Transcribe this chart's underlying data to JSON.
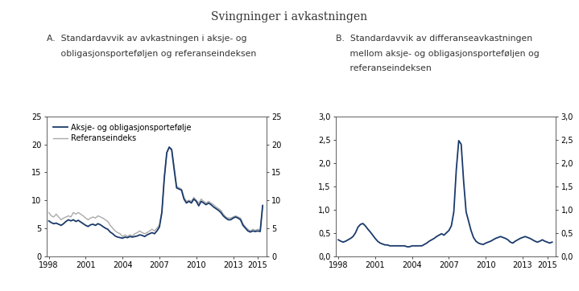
{
  "title": "Svingninger i avkastningen",
  "panel_A_title_line1": "A.  Standardavvik av avkastningen i aksje- og",
  "panel_A_title_line2": "     obligasjonsporteføljen og referanseindeksen",
  "panel_B_title_line1": "B.  Standardavvik av differanseavkastningen",
  "panel_B_title_line2": "     mellom aksje- og obligasjonsporteføljen og",
  "panel_B_title_line3": "     referanseindeksen",
  "legend_portfolio": "Aksje- og obligasjonsportefølje",
  "legend_index": "Referanseindeks",
  "portfolio_color": "#1a3a6b",
  "index_color": "#aaaaaa",
  "panel_A_ylim": [
    0,
    25
  ],
  "panel_A_yticks": [
    0,
    5,
    10,
    15,
    20,
    25
  ],
  "panel_B_ylim": [
    0.0,
    3.0
  ],
  "panel_B_yticks": [
    0.0,
    0.5,
    1.0,
    1.5,
    2.0,
    2.5,
    3.0
  ],
  "xlim_start": 1997.8,
  "xlim_end": 2015.7,
  "xtick_years": [
    1998,
    2001,
    2004,
    2007,
    2010,
    2013,
    2015
  ],
  "background_color": "#ffffff",
  "panel_A_portfolio_x": [
    1998.0,
    1998.2,
    1998.4,
    1998.6,
    1998.8,
    1999.0,
    1999.2,
    1999.4,
    1999.6,
    1999.8,
    2000.0,
    2000.2,
    2000.4,
    2000.6,
    2000.8,
    2001.0,
    2001.2,
    2001.4,
    2001.6,
    2001.8,
    2002.0,
    2002.2,
    2002.4,
    2002.6,
    2002.8,
    2003.0,
    2003.2,
    2003.4,
    2003.6,
    2003.8,
    2004.0,
    2004.2,
    2004.4,
    2004.6,
    2004.8,
    2005.0,
    2005.2,
    2005.4,
    2005.6,
    2005.8,
    2006.0,
    2006.2,
    2006.4,
    2006.6,
    2006.8,
    2007.0,
    2007.2,
    2007.4,
    2007.6,
    2007.8,
    2008.0,
    2008.2,
    2008.4,
    2008.6,
    2008.8,
    2009.0,
    2009.2,
    2009.4,
    2009.6,
    2009.8,
    2010.0,
    2010.2,
    2010.4,
    2010.6,
    2010.8,
    2011.0,
    2011.2,
    2011.4,
    2011.6,
    2011.8,
    2012.0,
    2012.2,
    2012.4,
    2012.6,
    2012.8,
    2013.0,
    2013.2,
    2013.4,
    2013.6,
    2013.8,
    2014.0,
    2014.2,
    2014.4,
    2014.6,
    2014.8,
    2015.0,
    2015.2,
    2015.4
  ],
  "panel_A_portfolio_y": [
    6.3,
    6.0,
    5.8,
    5.9,
    5.7,
    5.5,
    5.8,
    6.2,
    6.5,
    6.3,
    6.5,
    6.2,
    6.4,
    6.1,
    5.8,
    5.5,
    5.3,
    5.6,
    5.7,
    5.5,
    5.8,
    5.6,
    5.3,
    5.0,
    4.8,
    4.3,
    4.0,
    3.6,
    3.4,
    3.3,
    3.2,
    3.4,
    3.3,
    3.5,
    3.4,
    3.5,
    3.6,
    3.8,
    3.7,
    3.5,
    3.8,
    4.0,
    4.2,
    4.0,
    4.5,
    5.2,
    7.8,
    14.0,
    18.5,
    19.5,
    19.0,
    15.5,
    12.2,
    12.0,
    11.8,
    10.2,
    9.5,
    9.8,
    9.5,
    10.2,
    9.8,
    9.0,
    9.8,
    9.5,
    9.2,
    9.5,
    9.2,
    8.8,
    8.5,
    8.2,
    7.8,
    7.2,
    6.8,
    6.5,
    6.5,
    6.8,
    7.0,
    6.8,
    6.5,
    5.5,
    5.0,
    4.5,
    4.3,
    4.5,
    4.4,
    4.5,
    4.4,
    9.0
  ],
  "panel_A_index_x": [
    1998.0,
    1998.2,
    1998.4,
    1998.6,
    1998.8,
    1999.0,
    1999.2,
    1999.4,
    1999.6,
    1999.8,
    2000.0,
    2000.2,
    2000.4,
    2000.6,
    2000.8,
    2001.0,
    2001.2,
    2001.4,
    2001.6,
    2001.8,
    2002.0,
    2002.2,
    2002.4,
    2002.6,
    2002.8,
    2003.0,
    2003.2,
    2003.4,
    2003.6,
    2003.8,
    2004.0,
    2004.2,
    2004.4,
    2004.6,
    2004.8,
    2005.0,
    2005.2,
    2005.4,
    2005.6,
    2005.8,
    2006.0,
    2006.2,
    2006.4,
    2006.6,
    2006.8,
    2007.0,
    2007.2,
    2007.4,
    2007.6,
    2007.8,
    2008.0,
    2008.2,
    2008.4,
    2008.6,
    2008.8,
    2009.0,
    2009.2,
    2009.4,
    2009.6,
    2009.8,
    2010.0,
    2010.2,
    2010.4,
    2010.6,
    2010.8,
    2011.0,
    2011.2,
    2011.4,
    2011.6,
    2011.8,
    2012.0,
    2012.2,
    2012.4,
    2012.6,
    2012.8,
    2013.0,
    2013.2,
    2013.4,
    2013.6,
    2013.8,
    2014.0,
    2014.2,
    2014.4,
    2014.6,
    2014.8,
    2015.0,
    2015.2,
    2015.4
  ],
  "panel_A_index_y": [
    7.8,
    7.2,
    7.0,
    7.5,
    7.0,
    6.5,
    6.8,
    7.0,
    7.2,
    7.0,
    7.8,
    7.5,
    7.8,
    7.5,
    7.2,
    6.8,
    6.5,
    6.8,
    7.0,
    6.8,
    7.2,
    7.0,
    6.8,
    6.5,
    6.2,
    5.5,
    5.0,
    4.5,
    4.2,
    4.0,
    3.5,
    3.8,
    3.5,
    3.8,
    3.6,
    4.0,
    4.2,
    4.5,
    4.2,
    4.0,
    4.2,
    4.5,
    4.8,
    4.5,
    5.0,
    5.5,
    8.0,
    14.2,
    18.5,
    19.5,
    19.2,
    16.0,
    12.5,
    12.2,
    12.0,
    10.5,
    9.8,
    10.0,
    9.8,
    10.5,
    10.0,
    9.5,
    10.2,
    9.8,
    9.5,
    9.8,
    9.5,
    9.2,
    8.8,
    8.5,
    8.2,
    7.5,
    7.0,
    6.8,
    6.8,
    7.0,
    7.2,
    7.0,
    6.8,
    5.8,
    5.2,
    4.8,
    4.5,
    4.8,
    4.6,
    4.8,
    4.6,
    9.2
  ],
  "panel_B_x": [
    1998.0,
    1998.2,
    1998.4,
    1998.6,
    1998.8,
    1999.0,
    1999.2,
    1999.4,
    1999.6,
    1999.8,
    2000.0,
    2000.2,
    2000.4,
    2000.6,
    2000.8,
    2001.0,
    2001.2,
    2001.4,
    2001.6,
    2001.8,
    2002.0,
    2002.2,
    2002.4,
    2002.6,
    2002.8,
    2003.0,
    2003.2,
    2003.4,
    2003.6,
    2003.8,
    2004.0,
    2004.2,
    2004.4,
    2004.6,
    2004.8,
    2005.0,
    2005.2,
    2005.4,
    2005.6,
    2005.8,
    2006.0,
    2006.2,
    2006.4,
    2006.6,
    2006.8,
    2007.0,
    2007.2,
    2007.4,
    2007.6,
    2007.8,
    2008.0,
    2008.2,
    2008.4,
    2008.6,
    2008.8,
    2009.0,
    2009.2,
    2009.4,
    2009.6,
    2009.8,
    2010.0,
    2010.2,
    2010.4,
    2010.6,
    2010.8,
    2011.0,
    2011.2,
    2011.4,
    2011.6,
    2011.8,
    2012.0,
    2012.2,
    2012.4,
    2012.6,
    2012.8,
    2013.0,
    2013.2,
    2013.4,
    2013.6,
    2013.8,
    2014.0,
    2014.2,
    2014.4,
    2014.6,
    2014.8,
    2015.0,
    2015.2,
    2015.4
  ],
  "panel_B_y": [
    0.35,
    0.32,
    0.3,
    0.32,
    0.35,
    0.38,
    0.42,
    0.5,
    0.62,
    0.68,
    0.7,
    0.65,
    0.58,
    0.52,
    0.45,
    0.38,
    0.32,
    0.28,
    0.26,
    0.24,
    0.24,
    0.22,
    0.22,
    0.22,
    0.22,
    0.22,
    0.22,
    0.22,
    0.2,
    0.2,
    0.22,
    0.22,
    0.22,
    0.22,
    0.22,
    0.25,
    0.28,
    0.32,
    0.35,
    0.38,
    0.42,
    0.45,
    0.48,
    0.45,
    0.5,
    0.55,
    0.65,
    0.95,
    1.85,
    2.48,
    2.4,
    1.6,
    0.95,
    0.75,
    0.55,
    0.4,
    0.32,
    0.28,
    0.26,
    0.25,
    0.28,
    0.3,
    0.32,
    0.35,
    0.38,
    0.4,
    0.42,
    0.4,
    0.38,
    0.35,
    0.3,
    0.28,
    0.32,
    0.35,
    0.38,
    0.4,
    0.42,
    0.4,
    0.38,
    0.35,
    0.32,
    0.3,
    0.32,
    0.35,
    0.32,
    0.3,
    0.28,
    0.3
  ]
}
